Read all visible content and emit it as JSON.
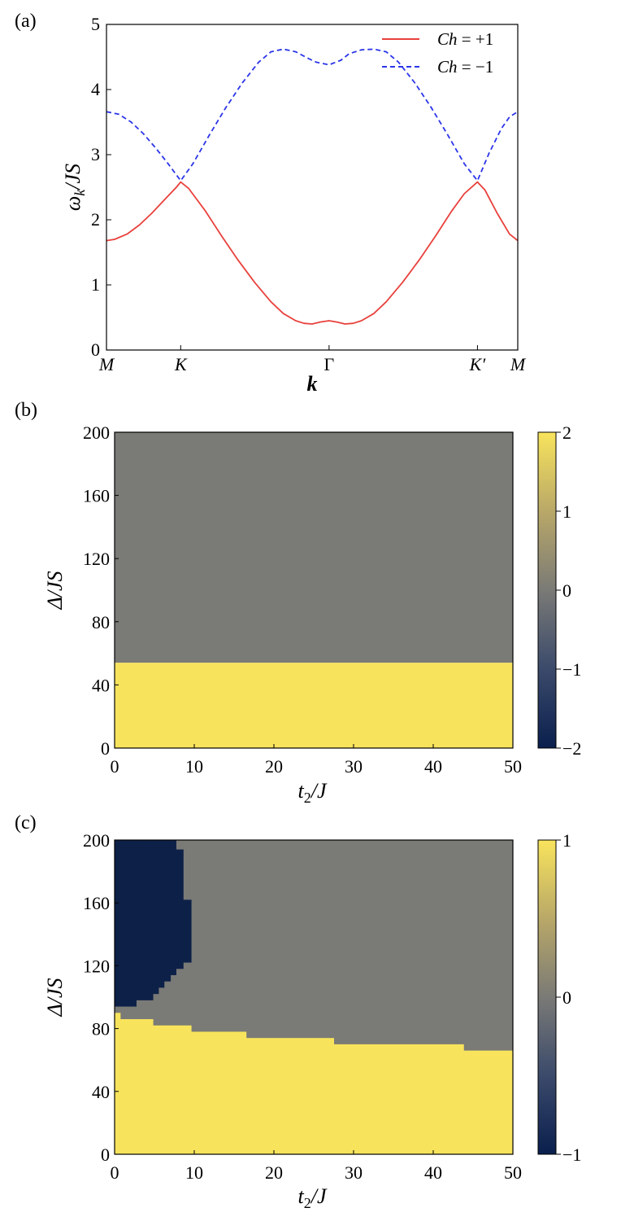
{
  "panel_labels": [
    "(a)",
    "(b)",
    "(c)"
  ],
  "chart_data": [
    {
      "type": "line",
      "panel": "(a)",
      "xlabel": "k",
      "ylabel": "ω_k / JS",
      "ylabel_parts": {
        "omega": "ω",
        "sub": "k",
        "rest": "/JS"
      },
      "xlim": [
        0,
        1
      ],
      "ylim": [
        0,
        5
      ],
      "x_ticks": [
        {
          "pos": 0,
          "label": "M"
        },
        {
          "pos": 0.1804,
          "label": "K"
        },
        {
          "pos": 0.5412,
          "label": "Γ"
        },
        {
          "pos": 0.902,
          "label": "K′"
        },
        {
          "pos": 1,
          "label": "M"
        }
      ],
      "y_ticks": [
        0,
        1,
        2,
        3,
        4,
        5
      ],
      "legend": {
        "placement": "top-right"
      },
      "series": [
        {
          "name": "Ch = +1",
          "legend_parts": {
            "name": "Ch",
            "rel": " = +1"
          },
          "color": "#e8413c",
          "style": "solid",
          "x": [
            0,
            0.02,
            0.05,
            0.08,
            0.11,
            0.14,
            0.17,
            0.1804,
            0.2,
            0.24,
            0.28,
            0.32,
            0.36,
            0.4,
            0.43,
            0.46,
            0.48,
            0.5,
            0.52,
            0.5412,
            0.56,
            0.58,
            0.6,
            0.62,
            0.65,
            0.68,
            0.72,
            0.76,
            0.8,
            0.84,
            0.87,
            0.902,
            0.92,
            0.95,
            0.98,
            1.0
          ],
          "y": [
            1.68,
            1.7,
            1.78,
            1.92,
            2.1,
            2.3,
            2.5,
            2.58,
            2.48,
            2.14,
            1.75,
            1.38,
            1.04,
            0.74,
            0.56,
            0.45,
            0.41,
            0.4,
            0.43,
            0.45,
            0.43,
            0.4,
            0.41,
            0.45,
            0.56,
            0.74,
            1.04,
            1.38,
            1.75,
            2.14,
            2.4,
            2.58,
            2.46,
            2.1,
            1.78,
            1.68
          ]
        },
        {
          "name": "Ch = −1",
          "legend_parts": {
            "name": "Ch",
            "rel": " = −1"
          },
          "color": "#2b35e8",
          "style": "dashed",
          "x": [
            0,
            0.03,
            0.06,
            0.09,
            0.12,
            0.15,
            0.1804,
            0.21,
            0.25,
            0.29,
            0.33,
            0.37,
            0.4,
            0.43,
            0.46,
            0.49,
            0.51,
            0.5412,
            0.57,
            0.59,
            0.62,
            0.65,
            0.68,
            0.71,
            0.75,
            0.79,
            0.83,
            0.87,
            0.902,
            0.93,
            0.96,
            0.98,
            1.0
          ],
          "y": [
            3.66,
            3.62,
            3.5,
            3.32,
            3.1,
            2.86,
            2.6,
            2.86,
            3.3,
            3.72,
            4.1,
            4.42,
            4.58,
            4.62,
            4.58,
            4.48,
            4.42,
            4.38,
            4.45,
            4.55,
            4.61,
            4.62,
            4.58,
            4.42,
            4.1,
            3.72,
            3.3,
            2.86,
            2.6,
            3.02,
            3.4,
            3.58,
            3.66
          ]
        }
      ]
    },
    {
      "type": "heatmap",
      "panel": "(b)",
      "xlabel": "t2/J",
      "xlabel_parts": {
        "var": "t",
        "sub": "2",
        "rest": "/J"
      },
      "ylabel": "Δ/JS",
      "xlim": [
        0,
        50
      ],
      "ylim": [
        0,
        200
      ],
      "x_ticks": [
        0,
        10,
        20,
        30,
        40,
        50
      ],
      "y_ticks": [
        0,
        40,
        80,
        120,
        160,
        200
      ],
      "colorbar": {
        "min": -2,
        "max": 2,
        "ticks": [
          "2",
          "1",
          "0",
          "−1",
          "−2"
        ]
      },
      "regions": [
        {
          "value": 2,
          "description": "Δ/JS below 54",
          "boundary_x": [
            0,
            50
          ],
          "boundary_y": [
            54,
            54
          ]
        },
        {
          "value": 0,
          "description": "Δ/JS above 54"
        }
      ]
    },
    {
      "type": "heatmap",
      "panel": "(c)",
      "xlabel": "t2/J",
      "xlabel_parts": {
        "var": "t",
        "sub": "2",
        "rest": "/J"
      },
      "ylabel": "Δ/JS",
      "xlim": [
        0,
        50
      ],
      "ylim": [
        0,
        200
      ],
      "x_ticks": [
        0,
        10,
        20,
        30,
        40,
        50
      ],
      "y_ticks": [
        0,
        40,
        80,
        120,
        160,
        200
      ],
      "colorbar": {
        "min": -1,
        "max": 1,
        "ticks": [
          "1",
          "0",
          "−1"
        ]
      },
      "yellow_top_steps": [
        {
          "t2": [
            0,
            0.7
          ],
          "delta": 90
        },
        {
          "t2": [
            0.7,
            4.8
          ],
          "delta": 86
        },
        {
          "t2": [
            4.8,
            9.6
          ],
          "delta": 82
        },
        {
          "t2": [
            9.6,
            16.5
          ],
          "delta": 78
        },
        {
          "t2": [
            16.5,
            27.5
          ],
          "delta": 74
        },
        {
          "t2": [
            27.5,
            43.8
          ],
          "delta": 70
        },
        {
          "t2": [
            43.8,
            50
          ],
          "delta": 66
        }
      ],
      "navy_region_bounds": [
        {
          "t2": [
            0,
            0.7
          ],
          "delta_min": 94
        },
        {
          "t2": [
            0.7,
            2.7
          ],
          "delta_min": 94
        },
        {
          "t2": [
            2.7,
            4.8
          ],
          "delta_min": 98
        },
        {
          "t2": [
            4.8,
            5.5
          ],
          "delta_min": 102
        },
        {
          "t2": [
            5.5,
            6.2
          ],
          "delta_min": 106
        },
        {
          "t2": [
            6.2,
            7.0
          ],
          "delta_min": 110
        },
        {
          "t2": [
            7.0,
            7.7
          ],
          "delta_min": 114
        },
        {
          "t2": [
            7.7,
            8.6
          ],
          "delta_min": 118
        },
        {
          "t2": [
            8.6,
            9.6
          ],
          "delta_min": 122
        }
      ],
      "navy_right_edge": [
        {
          "delta": [
            122,
            162
          ],
          "t2": 9.6
        },
        {
          "delta": [
            162,
            194
          ],
          "t2": 8.6
        },
        {
          "delta": [
            194,
            200
          ],
          "t2": 7.7
        }
      ]
    }
  ]
}
